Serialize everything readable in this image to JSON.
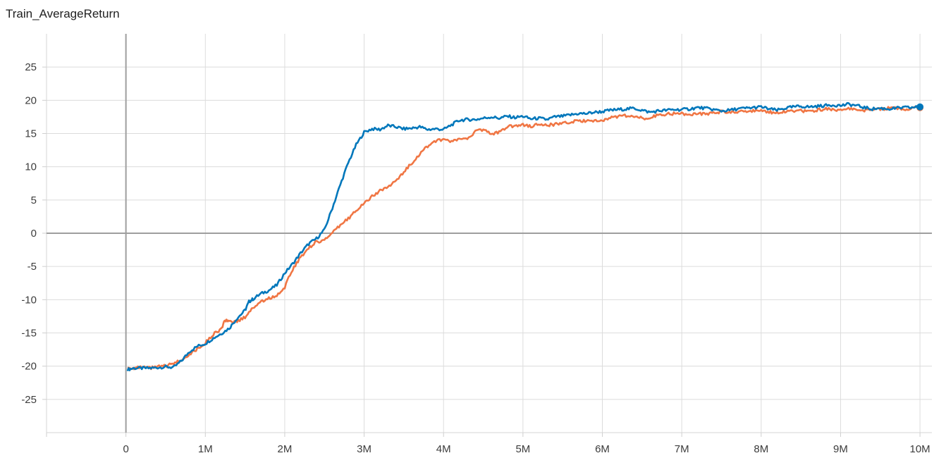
{
  "chart_data": {
    "type": "line",
    "title": "Train_AverageReturn",
    "xlabel": "",
    "ylabel": "",
    "xlim": [
      -1000000,
      10150000
    ],
    "ylim": [
      -30,
      30
    ],
    "grid": true,
    "x_ticks": [
      {
        "value": 0,
        "label": "0"
      },
      {
        "value": 1000000,
        "label": "1M"
      },
      {
        "value": 2000000,
        "label": "2M"
      },
      {
        "value": 3000000,
        "label": "3M"
      },
      {
        "value": 4000000,
        "label": "4M"
      },
      {
        "value": 5000000,
        "label": "5M"
      },
      {
        "value": 6000000,
        "label": "6M"
      },
      {
        "value": 7000000,
        "label": "7M"
      },
      {
        "value": 8000000,
        "label": "8M"
      },
      {
        "value": 9000000,
        "label": "9M"
      },
      {
        "value": 10000000,
        "label": "10M"
      }
    ],
    "y_ticks": [
      {
        "value": 25,
        "label": "25"
      },
      {
        "value": 20,
        "label": "20"
      },
      {
        "value": 15,
        "label": "15"
      },
      {
        "value": 10,
        "label": "10"
      },
      {
        "value": 5,
        "label": "5"
      },
      {
        "value": 0,
        "label": "0"
      },
      {
        "value": -5,
        "label": "-5"
      },
      {
        "value": -10,
        "label": "-10"
      },
      {
        "value": -15,
        "label": "-15"
      },
      {
        "value": -20,
        "label": "-20"
      },
      {
        "value": -25,
        "label": "-25"
      }
    ],
    "series": [
      {
        "color": "#0077bb",
        "points": [
          [
            20000,
            -20.5
          ],
          [
            100000,
            -20.3
          ],
          [
            200000,
            -20.3
          ],
          [
            300000,
            -20.3
          ],
          [
            400000,
            -20.2
          ],
          [
            500000,
            -20.1
          ],
          [
            600000,
            -20.2
          ],
          [
            700000,
            -19.2
          ],
          [
            800000,
            -17.8
          ],
          [
            900000,
            -17.0
          ],
          [
            1000000,
            -16.6
          ],
          [
            1100000,
            -15.8
          ],
          [
            1200000,
            -15.1
          ],
          [
            1300000,
            -14.3
          ],
          [
            1400000,
            -12.8
          ],
          [
            1500000,
            -11.6
          ],
          [
            1550000,
            -10.3
          ],
          [
            1600000,
            -9.9
          ],
          [
            1700000,
            -9.1
          ],
          [
            1800000,
            -8.6
          ],
          [
            1900000,
            -7.8
          ],
          [
            2000000,
            -6.0
          ],
          [
            2100000,
            -4.6
          ],
          [
            2200000,
            -3.0
          ],
          [
            2300000,
            -1.6
          ],
          [
            2400000,
            -0.8
          ],
          [
            2500000,
            0.5
          ],
          [
            2600000,
            3.8
          ],
          [
            2700000,
            7.3
          ],
          [
            2800000,
            10.6
          ],
          [
            2900000,
            13.3
          ],
          [
            3000000,
            15.2
          ],
          [
            3100000,
            15.7
          ],
          [
            3200000,
            15.6
          ],
          [
            3300000,
            16.2
          ],
          [
            3400000,
            16.0
          ],
          [
            3500000,
            15.7
          ],
          [
            3600000,
            15.8
          ],
          [
            3700000,
            16.0
          ],
          [
            3800000,
            15.6
          ],
          [
            3900000,
            15.7
          ],
          [
            4000000,
            15.6
          ],
          [
            4100000,
            16.3
          ],
          [
            4200000,
            17.0
          ],
          [
            4300000,
            17.1
          ],
          [
            4400000,
            17.1
          ],
          [
            4500000,
            17.3
          ],
          [
            4600000,
            17.5
          ],
          [
            4700000,
            17.3
          ],
          [
            4800000,
            17.6
          ],
          [
            4900000,
            17.4
          ],
          [
            5000000,
            17.6
          ],
          [
            5100000,
            17.2
          ],
          [
            5200000,
            17.3
          ],
          [
            5300000,
            17.1
          ],
          [
            5400000,
            17.5
          ],
          [
            5500000,
            17.6
          ],
          [
            5600000,
            17.8
          ],
          [
            5700000,
            18.0
          ],
          [
            5800000,
            18.0
          ],
          [
            5900000,
            18.2
          ],
          [
            6000000,
            18.3
          ],
          [
            6100000,
            18.5
          ],
          [
            6200000,
            18.6
          ],
          [
            6300000,
            18.7
          ],
          [
            6400000,
            18.8
          ],
          [
            6500000,
            18.5
          ],
          [
            6600000,
            18.2
          ],
          [
            6700000,
            18.4
          ],
          [
            6800000,
            18.5
          ],
          [
            6900000,
            18.6
          ],
          [
            7000000,
            18.6
          ],
          [
            7100000,
            18.7
          ],
          [
            7200000,
            18.9
          ],
          [
            7300000,
            18.8
          ],
          [
            7400000,
            18.6
          ],
          [
            7500000,
            18.4
          ],
          [
            7600000,
            18.5
          ],
          [
            7700000,
            18.7
          ],
          [
            7800000,
            18.8
          ],
          [
            7900000,
            18.9
          ],
          [
            8000000,
            19.0
          ],
          [
            8100000,
            18.7
          ],
          [
            8200000,
            18.5
          ],
          [
            8300000,
            18.8
          ],
          [
            8400000,
            19.0
          ],
          [
            8500000,
            19.1
          ],
          [
            8600000,
            19.0
          ],
          [
            8700000,
            19.1
          ],
          [
            8800000,
            19.2
          ],
          [
            8900000,
            19.3
          ],
          [
            9000000,
            19.2
          ],
          [
            9100000,
            19.4
          ],
          [
            9200000,
            19.2
          ],
          [
            9300000,
            18.9
          ],
          [
            9400000,
            18.7
          ],
          [
            9500000,
            18.8
          ],
          [
            9600000,
            18.7
          ],
          [
            9700000,
            18.8
          ],
          [
            9800000,
            18.9
          ],
          [
            9900000,
            18.9
          ],
          [
            10000000,
            19.0
          ]
        ]
      },
      {
        "color": "#f07644",
        "points": [
          [
            20000,
            -20.2
          ],
          [
            100000,
            -20.3
          ],
          [
            200000,
            -20.2
          ],
          [
            300000,
            -20.3
          ],
          [
            400000,
            -20.1
          ],
          [
            500000,
            -20.0
          ],
          [
            600000,
            -19.6
          ],
          [
            700000,
            -19.0
          ],
          [
            800000,
            -18.2
          ],
          [
            900000,
            -17.4
          ],
          [
            1000000,
            -16.5
          ],
          [
            1100000,
            -15.2
          ],
          [
            1200000,
            -14.4
          ],
          [
            1250000,
            -13.1
          ],
          [
            1300000,
            -13.4
          ],
          [
            1400000,
            -13.3
          ],
          [
            1500000,
            -12.6
          ],
          [
            1600000,
            -11.2
          ],
          [
            1700000,
            -10.3
          ],
          [
            1800000,
            -9.8
          ],
          [
            1900000,
            -9.4
          ],
          [
            2000000,
            -8.1
          ],
          [
            2100000,
            -5.4
          ],
          [
            2200000,
            -3.6
          ],
          [
            2300000,
            -2.2
          ],
          [
            2400000,
            -1.3
          ],
          [
            2500000,
            -1.0
          ],
          [
            2600000,
            0.0
          ],
          [
            2700000,
            1.2
          ],
          [
            2800000,
            2.2
          ],
          [
            2900000,
            3.5
          ],
          [
            3000000,
            4.5
          ],
          [
            3100000,
            5.5
          ],
          [
            3200000,
            6.4
          ],
          [
            3300000,
            7.0
          ],
          [
            3400000,
            7.8
          ],
          [
            3500000,
            9.2
          ],
          [
            3600000,
            10.6
          ],
          [
            3700000,
            11.9
          ],
          [
            3800000,
            13.1
          ],
          [
            3900000,
            13.9
          ],
          [
            4000000,
            14.0
          ],
          [
            4100000,
            13.8
          ],
          [
            4200000,
            14.1
          ],
          [
            4300000,
            14.3
          ],
          [
            4400000,
            15.3
          ],
          [
            4500000,
            15.6
          ],
          [
            4600000,
            14.9
          ],
          [
            4700000,
            15.2
          ],
          [
            4800000,
            16.0
          ],
          [
            4900000,
            16.2
          ],
          [
            5000000,
            16.3
          ],
          [
            5100000,
            16.1
          ],
          [
            5200000,
            16.4
          ],
          [
            5300000,
            16.2
          ],
          [
            5400000,
            16.4
          ],
          [
            5500000,
            16.5
          ],
          [
            5600000,
            16.7
          ],
          [
            5700000,
            16.9
          ],
          [
            5800000,
            16.9
          ],
          [
            5900000,
            16.8
          ],
          [
            6000000,
            17.0
          ],
          [
            6100000,
            17.4
          ],
          [
            6200000,
            17.6
          ],
          [
            6300000,
            17.7
          ],
          [
            6400000,
            17.6
          ],
          [
            6500000,
            17.3
          ],
          [
            6600000,
            17.4
          ],
          [
            6700000,
            17.8
          ],
          [
            6800000,
            17.9
          ],
          [
            6900000,
            18.0
          ],
          [
            7000000,
            18.0
          ],
          [
            7100000,
            17.9
          ],
          [
            7200000,
            18.0
          ],
          [
            7300000,
            18.0
          ],
          [
            7400000,
            18.1
          ],
          [
            7500000,
            18.3
          ],
          [
            7600000,
            18.2
          ],
          [
            7700000,
            18.3
          ],
          [
            7800000,
            18.4
          ],
          [
            7900000,
            18.4
          ],
          [
            8000000,
            18.4
          ],
          [
            8100000,
            18.2
          ],
          [
            8200000,
            18.2
          ],
          [
            8300000,
            18.3
          ],
          [
            8400000,
            18.3
          ],
          [
            8500000,
            18.4
          ],
          [
            8600000,
            18.4
          ],
          [
            8700000,
            18.5
          ],
          [
            8800000,
            18.7
          ],
          [
            8900000,
            18.6
          ],
          [
            9000000,
            18.6
          ],
          [
            9100000,
            18.7
          ],
          [
            9200000,
            18.6
          ],
          [
            9300000,
            18.5
          ],
          [
            9400000,
            18.6
          ],
          [
            9500000,
            18.7
          ],
          [
            9600000,
            18.8
          ],
          [
            9700000,
            18.8
          ],
          [
            9800000,
            18.7
          ],
          [
            9900000,
            18.8
          ],
          [
            10000000,
            18.9
          ]
        ]
      }
    ]
  }
}
